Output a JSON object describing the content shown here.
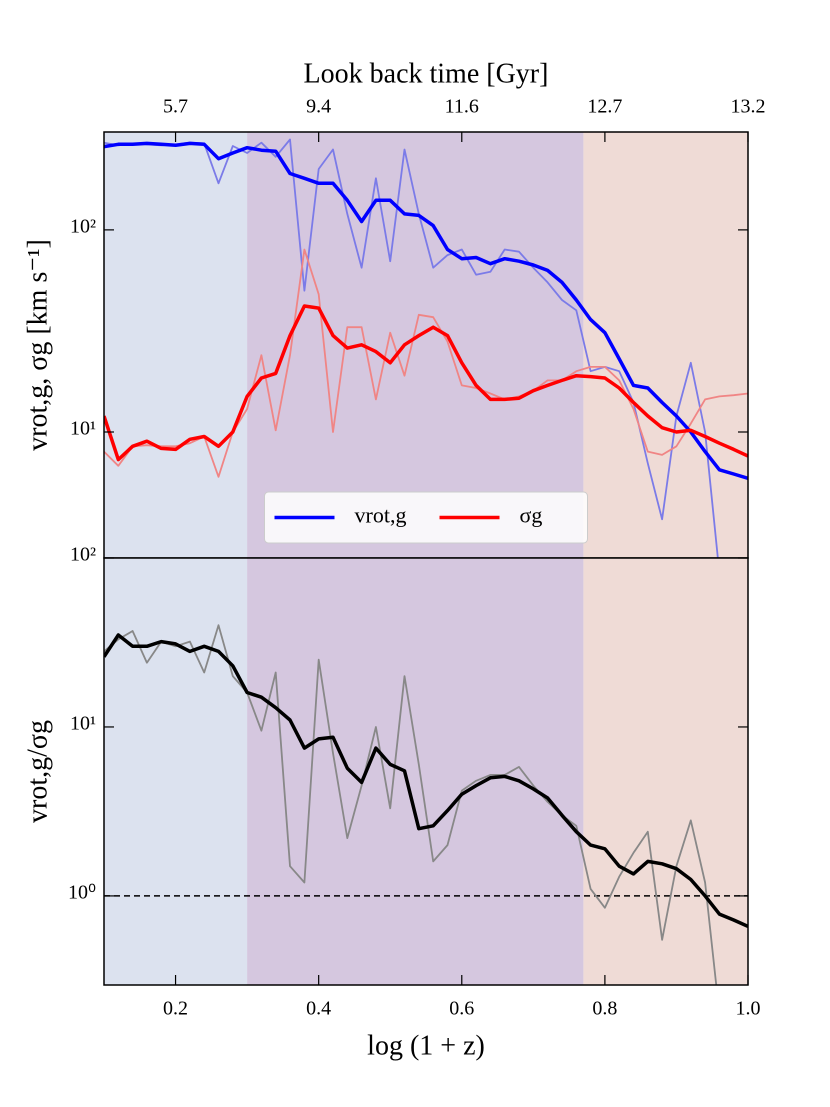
{
  "chart_data": [
    {
      "type": "line",
      "x2label": "Look back time [Gyr]",
      "ylabel": "vrot,g,  σg [km s⁻¹]",
      "xlim": [
        0.1,
        1.0
      ],
      "ylim": [
        2.38,
        305
      ],
      "log_y": true,
      "x2ticks": [
        {
          "value": 0.2,
          "label": "5.7"
        },
        {
          "value": 0.4,
          "label": "9.4"
        },
        {
          "value": 0.6,
          "label": "11.6"
        },
        {
          "value": 0.8,
          "label": "12.7"
        },
        {
          "value": 1.0,
          "label": "13.2"
        }
      ],
      "yticks": [
        {
          "value": 10,
          "label": "10¹"
        },
        {
          "value": 100,
          "label": "10²"
        }
      ],
      "regions": [
        {
          "xlim": [
            0.1,
            0.3
          ],
          "color": "#dce2ef"
        },
        {
          "xlim": [
            0.3,
            0.77
          ],
          "color": "#d5c7df"
        },
        {
          "xlim": [
            0.77,
            1.0
          ],
          "color": "#efdbd6"
        }
      ],
      "legend": "lower center",
      "x": [
        0.1,
        0.12,
        0.14,
        0.16,
        0.18,
        0.2,
        0.22,
        0.24,
        0.26,
        0.28,
        0.3,
        0.32,
        0.34,
        0.36,
        0.38,
        0.4,
        0.42,
        0.44,
        0.46,
        0.48,
        0.5,
        0.52,
        0.54,
        0.56,
        0.58,
        0.6,
        0.62,
        0.64,
        0.66,
        0.68,
        0.7,
        0.72,
        0.74,
        0.76,
        0.78,
        0.8,
        0.82,
        0.84,
        0.86,
        0.88,
        0.9,
        0.92,
        0.94,
        0.96,
        0.98,
        1.0
      ],
      "series": [
        {
          "style": "thin",
          "color": "#7b7be8",
          "values": [
            270,
            262,
            268,
            265,
            262,
            265,
            270,
            268,
            170,
            260,
            240,
            270,
            230,
            280,
            50,
            200,
            250,
            120,
            65,
            180,
            70,
            250,
            120,
            65,
            75,
            80,
            60,
            62,
            80,
            78,
            65,
            55,
            45,
            40,
            20,
            21,
            20,
            14,
            7,
            3.7,
            12,
            22,
            10,
            2,
            null,
            null
          ]
        },
        {
          "style": "thin",
          "color": "#f08585",
          "values": [
            8,
            6.8,
            8.5,
            8.6,
            8.5,
            8.5,
            8.8,
            9.5,
            6,
            10,
            13,
            24,
            10.2,
            24,
            80,
            48,
            10,
            33,
            33,
            14.5,
            31,
            19,
            38,
            37,
            28,
            17,
            16.5,
            15.5,
            14.5,
            15,
            16,
            18,
            18,
            20,
            21,
            21,
            18,
            13,
            8,
            7.7,
            8.5,
            11,
            14.5,
            15,
            15.2,
            15.5
          ]
        },
        {
          "name": "vrot,g",
          "style": "thick",
          "color": "#0000ff",
          "values": [
            258,
            265,
            265,
            268,
            265,
            262,
            268,
            265,
            225,
            240,
            255,
            248,
            245,
            190,
            180,
            170,
            170,
            140,
            110,
            140,
            140,
            120,
            118,
            105,
            80,
            72,
            73,
            68,
            72,
            70,
            67,
            63,
            55,
            45,
            36,
            31,
            23,
            17,
            16.5,
            14,
            12,
            10,
            8,
            6.5,
            6.2,
            5.9
          ]
        },
        {
          "name": "σg",
          "style": "thick",
          "color": "#ff0000",
          "values": [
            12,
            7.3,
            8.5,
            9,
            8.3,
            8.2,
            9.2,
            9.5,
            8.5,
            10,
            15,
            18.5,
            19.5,
            30,
            42,
            41,
            30,
            26,
            27,
            25,
            22,
            27,
            30,
            33,
            30,
            22,
            17,
            14.5,
            14.5,
            14.7,
            16,
            17,
            18,
            19,
            18.8,
            18.5,
            16.5,
            14,
            12,
            10.5,
            10,
            10.2,
            9.5,
            8.8,
            8.2,
            7.6
          ]
        }
      ]
    },
    {
      "type": "line",
      "xlabel": "log (1 + z)",
      "ylabel": "vrot,g/σg",
      "xlim": [
        0.1,
        1.0
      ],
      "ylim": [
        0.297,
        100
      ],
      "log_y": true,
      "xticks": [
        0.2,
        0.4,
        0.6,
        0.8,
        {
          "value": 1.0,
          "label": "1.0"
        }
      ],
      "yticks": [
        {
          "value": 1,
          "label": "10⁰"
        },
        {
          "value": 10,
          "label": "10¹"
        },
        {
          "value": 100,
          "label": "10²"
        }
      ],
      "regions": [
        {
          "xlim": [
            0.1,
            0.3
          ],
          "color": "#dce2ef"
        },
        {
          "xlim": [
            0.3,
            0.77
          ],
          "color": "#d5c7df"
        },
        {
          "xlim": [
            0.77,
            1.0
          ],
          "color": "#efdbd6"
        }
      ],
      "hline": 1,
      "x": [
        0.1,
        0.12,
        0.14,
        0.16,
        0.18,
        0.2,
        0.22,
        0.24,
        0.26,
        0.28,
        0.3,
        0.32,
        0.34,
        0.36,
        0.38,
        0.4,
        0.42,
        0.44,
        0.46,
        0.48,
        0.5,
        0.52,
        0.54,
        0.56,
        0.58,
        0.6,
        0.62,
        0.64,
        0.66,
        0.68,
        0.7,
        0.72,
        0.74,
        0.76,
        0.78,
        0.8,
        0.82,
        0.84,
        0.86,
        0.88,
        0.9,
        0.92,
        0.94,
        0.96,
        0.98,
        1.0
      ],
      "series": [
        {
          "style": "thin",
          "color": "#888888",
          "values": [
            28,
            33,
            37,
            24,
            32,
            30,
            32,
            21,
            40,
            20,
            16,
            9.5,
            21,
            1.5,
            1.2,
            25,
            7,
            2.2,
            4.5,
            10,
            3.3,
            20,
            6,
            1.6,
            2,
            4.2,
            4.8,
            5.2,
            5.2,
            5.8,
            4.5,
            3.6,
            3.0,
            2.6,
            1.1,
            0.85,
            1.3,
            1.8,
            2.4,
            0.55,
            1.5,
            2.8,
            1.2,
            0.2,
            null,
            null
          ]
        },
        {
          "style": "thick",
          "color": "#000000",
          "values": [
            26,
            35,
            30,
            30,
            32,
            31,
            28,
            30,
            28,
            23,
            16,
            15,
            13,
            11,
            7.5,
            8.5,
            8.7,
            5.7,
            4.7,
            7.5,
            6,
            5.5,
            2.5,
            2.6,
            3.2,
            4,
            4.5,
            5,
            5.1,
            4.8,
            4.3,
            3.8,
            3.0,
            2.4,
            2.0,
            1.9,
            1.5,
            1.35,
            1.6,
            1.55,
            1.45,
            1.25,
            1.0,
            0.78,
            0.72,
            0.66
          ]
        }
      ]
    }
  ]
}
